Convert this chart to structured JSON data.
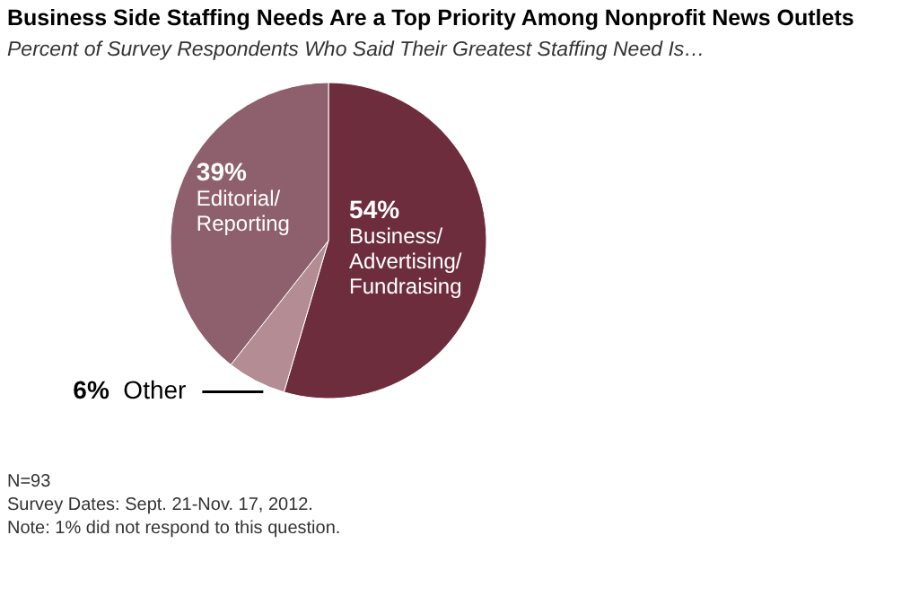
{
  "chart_data": {
    "type": "pie",
    "title": "Business Side Staffing Needs Are a Top Priority Among Nonprofit News Outlets",
    "subtitle": "Percent of Survey Respondents Who Said Their Greatest Staffing Need Is…",
    "categories": [
      "Business/ Advertising/ Fundraising",
      "Other",
      "Editorial/ Reporting"
    ],
    "values": [
      54,
      6,
      39
    ],
    "colors": [
      "#6e2d3d",
      "#b48c94",
      "#8e5f6c"
    ],
    "value_labels": [
      "54%",
      "6%",
      "39%"
    ],
    "annotations": [
      "N=93",
      "Survey Dates: Sept. 21-Nov. 17, 2012.",
      "Note: 1% did not respond to this question."
    ]
  }
}
